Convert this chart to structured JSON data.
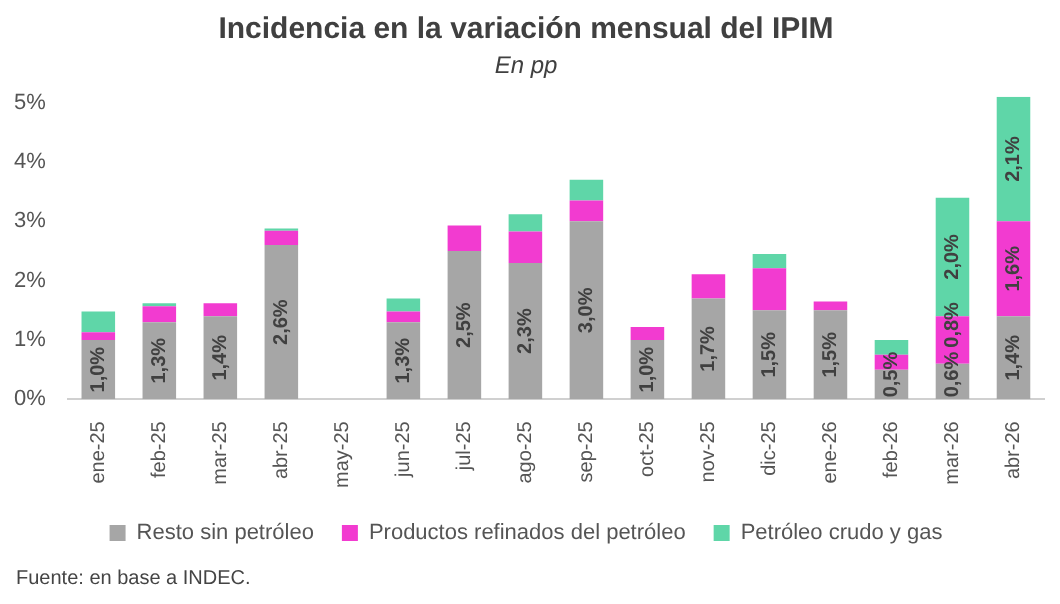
{
  "chart_data": {
    "type": "bar",
    "title": "Incidencia en la variación mensual del IPIM",
    "subtitle": "En pp",
    "categories": [
      "ene-25",
      "feb-25",
      "mar-25",
      "abr-25",
      "may-25",
      "jun-25",
      "jul-25",
      "ago-25",
      "sep-25",
      "oct-25",
      "nov-25",
      "dic-25",
      "ene-26",
      "feb-26",
      "mar-26",
      "abr-26"
    ],
    "stacked": true,
    "ylim": [
      0,
      5.1
    ],
    "yticks": [
      {
        "value": 0,
        "label": "0%"
      },
      {
        "value": 1,
        "label": "1%"
      },
      {
        "value": 2,
        "label": "2%"
      },
      {
        "value": 3,
        "label": "3%"
      },
      {
        "value": 4,
        "label": "4%"
      },
      {
        "value": 5,
        "label": "5%"
      }
    ],
    "series": [
      {
        "name": "Resto sin petróleo",
        "color": "#a6a6a6",
        "values": [
          1.0,
          1.3,
          1.4,
          2.6,
          null,
          1.3,
          2.5,
          2.3,
          3.0,
          1.0,
          1.7,
          1.5,
          1.5,
          0.5,
          0.6,
          1.4
        ],
        "value_labels": [
          "1,0%",
          "1,3%",
          "1,4%",
          "2,6%",
          null,
          "1,3%",
          "2,5%",
          "2,3%",
          "3,0%",
          "1,0%",
          "1,7%",
          "1,5%",
          "1,5%",
          "0,5%",
          "0,6%",
          "1,4%"
        ]
      },
      {
        "name": "Productos refinados del petróleo",
        "color": "#f23bd0",
        "values": [
          0.13,
          0.27,
          0.22,
          0.24,
          null,
          0.18,
          0.43,
          0.53,
          0.35,
          0.22,
          0.41,
          0.71,
          0.15,
          0.25,
          0.8,
          1.6
        ],
        "value_labels": [
          null,
          null,
          null,
          null,
          null,
          null,
          null,
          null,
          null,
          null,
          null,
          null,
          null,
          null,
          "0,8%",
          "1,6%"
        ]
      },
      {
        "name": "Petróleo crudo y gas",
        "color": "#5fd6a8",
        "values": [
          0.35,
          0.05,
          0,
          0.04,
          null,
          0.22,
          0,
          0.29,
          0.35,
          0,
          0,
          0.24,
          0,
          0.25,
          2.0,
          2.1
        ],
        "value_labels": [
          null,
          null,
          null,
          null,
          null,
          null,
          null,
          null,
          null,
          null,
          null,
          null,
          null,
          null,
          "2,0%",
          "2,1%"
        ]
      }
    ],
    "grid": false,
    "legend": "bottom",
    "annotations": [
      "Fuente: en base a INDEC."
    ]
  }
}
